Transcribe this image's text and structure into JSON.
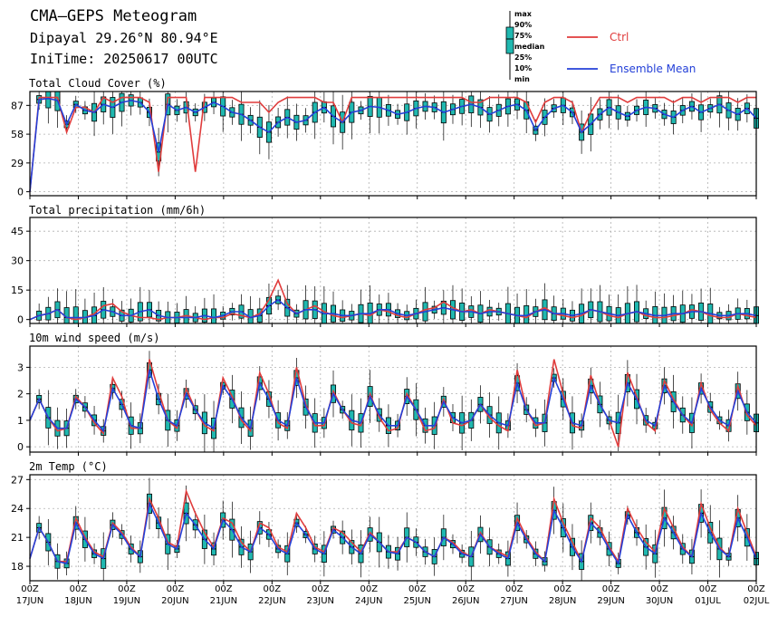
{
  "header": {
    "title": "CMA—GEPS Meteogram",
    "location": "Dipayal 29.26°N 80.94°E",
    "init_time": "IniTime: 20250617 00UTC"
  },
  "legend": {
    "box_labels": [
      "max",
      "90%",
      "75%",
      "median",
      "25%",
      "10%",
      "min"
    ],
    "ctrl_label": "Ctrl",
    "mean_label": "Ensemble Mean",
    "ctrl_color": "#e03c3c",
    "mean_color": "#2440d8",
    "box_color": "#20b8b0"
  },
  "chart_data": [
    {
      "type": "line",
      "title": "Total Cloud Cover (%)",
      "ylim": [
        -4,
        101
      ],
      "yticks": [
        0,
        29,
        58,
        87
      ],
      "x_step_hours": 6,
      "ctrl": [
        0,
        95,
        95,
        95,
        60,
        85,
        85,
        80,
        95,
        90,
        95,
        95,
        95,
        90,
        20,
        95,
        95,
        95,
        20,
        95,
        95,
        95,
        95,
        90,
        90,
        90,
        80,
        90,
        95,
        95,
        95,
        95,
        90,
        90,
        70,
        95,
        95,
        95,
        95,
        95,
        95,
        95,
        95,
        95,
        95,
        95,
        95,
        95,
        90,
        90,
        95,
        95,
        95,
        95,
        90,
        70,
        90,
        95,
        95,
        90,
        60,
        80,
        95,
        95,
        95,
        90,
        95,
        95,
        95,
        95,
        90,
        95,
        95,
        90,
        95,
        95,
        95,
        90,
        95,
        95
      ],
      "mean": [
        0,
        93,
        94,
        92,
        68,
        88,
        82,
        80,
        88,
        85,
        90,
        92,
        90,
        80,
        40,
        88,
        82,
        85,
        80,
        85,
        90,
        86,
        80,
        78,
        72,
        65,
        60,
        70,
        75,
        70,
        72,
        80,
        85,
        76,
        70,
        80,
        82,
        86,
        85,
        82,
        78,
        80,
        84,
        86,
        85,
        80,
        83,
        86,
        88,
        85,
        78,
        82,
        86,
        88,
        82,
        62,
        75,
        84,
        87,
        80,
        60,
        68,
        78,
        85,
        80,
        76,
        82,
        85,
        84,
        78,
        75,
        82,
        86,
        80,
        84,
        88,
        82,
        78,
        84,
        74
      ]
    },
    {
      "type": "line",
      "title": "Total precipitation (mm/6h)",
      "ylim": [
        -2,
        52
      ],
      "yticks": [
        0,
        15,
        30,
        45
      ],
      "x_step_hours": 6,
      "ctrl": [
        0,
        2,
        3,
        5,
        1,
        0,
        1,
        3,
        7,
        8,
        4,
        2,
        1,
        1,
        0,
        1,
        1,
        2,
        1,
        0,
        1,
        1,
        3,
        2,
        1,
        3,
        10,
        20,
        8,
        3,
        5,
        7,
        4,
        2,
        1,
        2,
        3,
        2,
        5,
        4,
        2,
        1,
        3,
        5,
        6,
        9,
        6,
        4,
        5,
        3,
        5,
        4,
        3,
        2,
        1,
        4,
        6,
        3,
        2,
        1,
        2,
        5,
        4,
        2,
        1,
        3,
        4,
        2,
        1,
        1,
        2,
        3,
        5,
        4,
        2,
        1,
        1,
        3,
        2,
        1
      ],
      "mean": [
        0,
        2,
        3,
        5,
        1,
        1,
        1,
        2,
        5,
        4,
        2,
        2,
        4,
        5,
        2,
        1,
        1,
        1,
        1,
        2,
        1,
        2,
        4,
        4,
        1,
        2,
        7,
        10,
        6,
        3,
        5,
        5,
        3,
        3,
        2,
        2,
        3,
        3,
        5,
        5,
        3,
        2,
        3,
        4,
        5,
        6,
        5,
        4,
        4,
        3,
        4,
        4,
        3,
        2,
        2,
        4,
        5,
        3,
        3,
        2,
        3,
        5,
        4,
        3,
        2,
        3,
        4,
        3,
        2,
        2,
        3,
        3,
        4,
        4,
        3,
        2,
        2,
        3,
        3,
        2
      ]
    },
    {
      "type": "line",
      "title": "10m wind speed (m/s)",
      "ylim": [
        -0.2,
        3.8
      ],
      "yticks": [
        0,
        1,
        2,
        3
      ],
      "x_step_hours": 6,
      "ctrl": [
        1.0,
        1.8,
        1.1,
        0.6,
        0.7,
        1.9,
        1.5,
        0.9,
        0.5,
        2.6,
        1.9,
        0.7,
        0.7,
        3.3,
        2.1,
        1.0,
        0.7,
        2.2,
        1.4,
        0.8,
        0.6,
        2.6,
        1.9,
        1.0,
        0.6,
        2.8,
        2.0,
        0.9,
        0.7,
        3.0,
        1.6,
        0.8,
        0.8,
        2.1,
        1.4,
        0.9,
        0.8,
        2.0,
        1.1,
        0.6,
        0.7,
        2.0,
        1.4,
        0.6,
        0.7,
        1.8,
        0.9,
        0.8,
        1.0,
        1.6,
        1.1,
        0.8,
        0.6,
        2.9,
        1.4,
        0.8,
        0.9,
        3.3,
        2.0,
        0.8,
        0.7,
        2.7,
        1.6,
        1.0,
        0.0,
        2.8,
        1.9,
        0.9,
        0.6,
        2.5,
        1.8,
        1.2,
        0.8,
        2.4,
        1.4,
        0.9,
        0.6,
        2.3,
        1.2,
        0.8
      ],
      "mean": [
        1.0,
        1.8,
        1.1,
        0.7,
        0.7,
        1.8,
        1.5,
        1.0,
        0.6,
        2.2,
        1.6,
        0.8,
        0.7,
        2.9,
        1.8,
        1.0,
        0.8,
        2.0,
        1.4,
        0.9,
        0.7,
        2.3,
        1.8,
        1.1,
        0.7,
        2.4,
        1.8,
        1.0,
        0.8,
        2.6,
        1.5,
        0.9,
        0.9,
        2.0,
        1.4,
        1.0,
        0.9,
        1.9,
        1.2,
        0.8,
        0.8,
        1.9,
        1.4,
        0.8,
        0.8,
        1.7,
        1.1,
        0.9,
        1.0,
        1.6,
        1.2,
        0.9,
        0.8,
        2.4,
        1.4,
        0.9,
        0.9,
        2.6,
        1.8,
        0.9,
        0.8,
        2.3,
        1.6,
        1.0,
        0.9,
        2.4,
        1.8,
        1.0,
        0.8,
        2.3,
        1.7,
        1.2,
        0.9,
        2.2,
        1.5,
        1.0,
        0.8,
        2.1,
        1.3,
        0.9
      ]
    },
    {
      "type": "line",
      "title": "2m Temp (°C)",
      "ylim": [
        16.5,
        27.5
      ],
      "yticks": [
        18,
        21,
        24,
        27
      ],
      "x_step_hours": 6,
      "ctrl": [
        18.8,
        22.0,
        20.5,
        18.5,
        18.5,
        23.0,
        21.0,
        19.5,
        19.0,
        22.5,
        21.5,
        20.0,
        19.0,
        25.0,
        23.0,
        20.5,
        20.0,
        25.8,
        23.5,
        21.5,
        20.0,
        23.0,
        22.5,
        20.5,
        19.5,
        22.5,
        22.0,
        20.0,
        19.5,
        23.5,
        22.0,
        20.0,
        19.5,
        22.0,
        21.5,
        20.5,
        19.5,
        21.5,
        20.5,
        19.5,
        19.5,
        21.0,
        20.5,
        19.5,
        19.0,
        21.0,
        20.5,
        19.5,
        19.0,
        21.5,
        20.0,
        19.5,
        19.0,
        23.0,
        21.0,
        19.5,
        18.5,
        25.0,
        22.5,
        20.5,
        18.5,
        23.0,
        22.0,
        20.0,
        18.5,
        24.0,
        22.0,
        20.5,
        19.5,
        24.0,
        22.0,
        20.0,
        19.0,
        24.5,
        22.0,
        20.0,
        19.0,
        24.0,
        21.5,
        19.0
      ],
      "mean": [
        18.8,
        22.0,
        20.5,
        18.5,
        18.3,
        22.5,
        20.8,
        19.3,
        18.8,
        22.3,
        21.3,
        19.8,
        19.0,
        24.5,
        22.5,
        20.3,
        19.8,
        23.5,
        22.3,
        20.8,
        19.8,
        22.8,
        21.8,
        20.0,
        19.5,
        22.0,
        21.3,
        19.8,
        19.3,
        22.5,
        21.3,
        19.8,
        19.3,
        21.8,
        21.0,
        20.0,
        19.3,
        21.3,
        20.5,
        19.5,
        19.3,
        21.0,
        20.5,
        19.5,
        19.0,
        21.0,
        20.3,
        19.3,
        19.0,
        21.3,
        20.0,
        19.3,
        18.8,
        22.5,
        20.8,
        19.3,
        18.5,
        23.8,
        22.0,
        20.0,
        18.5,
        22.5,
        21.5,
        19.8,
        18.3,
        23.3,
        21.5,
        20.0,
        19.3,
        23.0,
        21.5,
        19.8,
        19.0,
        23.5,
        21.5,
        19.8,
        19.0,
        23.0,
        21.0,
        18.8
      ]
    }
  ],
  "xaxis": {
    "hour_labels": [
      "00Z",
      "00Z",
      "00Z",
      "00Z",
      "00Z",
      "00Z",
      "00Z",
      "00Z",
      "00Z",
      "00Z",
      "00Z",
      "00Z",
      "00Z",
      "00Z",
      "00Z",
      "00Z"
    ],
    "date_labels": [
      "17JUN",
      "18JUN",
      "19JUN",
      "20JUN",
      "21JUN",
      "22JUN",
      "23JUN",
      "24JUN",
      "25JUN",
      "26JUN",
      "27JUN",
      "28JUN",
      "29JUN",
      "30JUN",
      "01JUL",
      "02JUL"
    ]
  }
}
